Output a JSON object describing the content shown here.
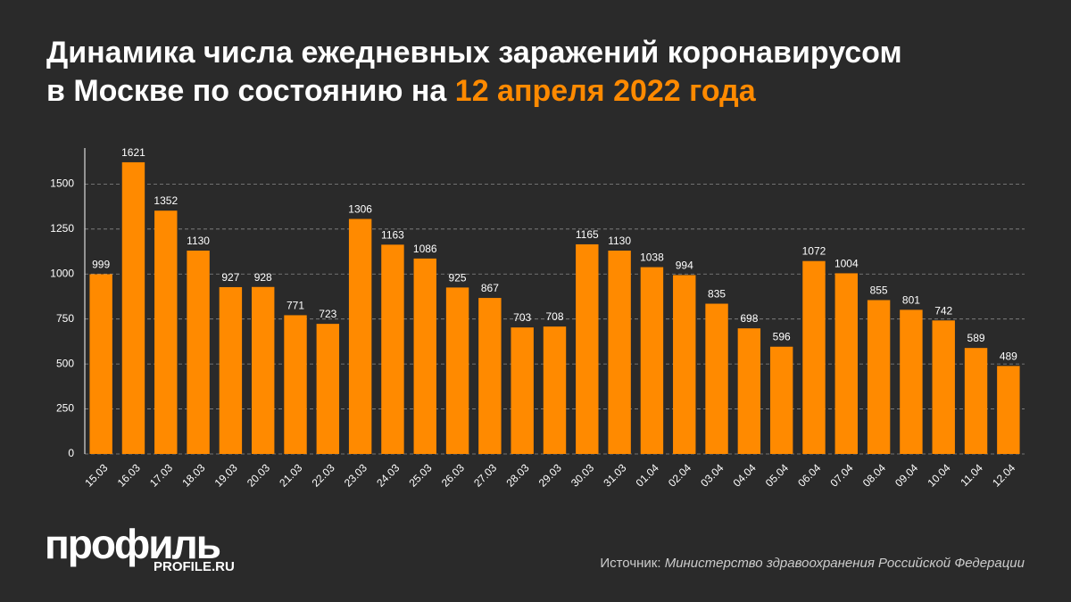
{
  "chart_data": {
    "type": "bar",
    "title": {
      "line1": "Динамика числа ежедневных заражений коронавирусом",
      "line2": "в Москве по состоянию на",
      "highlight": "12 апреля 2022 года"
    },
    "categories": [
      "15.03",
      "16.03",
      "17.03",
      "18.03",
      "19.03",
      "20.03",
      "21.03",
      "22.03",
      "23.03",
      "24.03",
      "25.03",
      "26.03",
      "27.03",
      "28.03",
      "29.03",
      "30.03",
      "31.03",
      "01.04",
      "02.04",
      "03.04",
      "04.04",
      "05.04",
      "06.04",
      "07.04",
      "08.04",
      "09.04",
      "10.04",
      "11.04",
      "12.04"
    ],
    "values": [
      999,
      1621,
      1352,
      1130,
      927,
      928,
      771,
      723,
      1306,
      1163,
      1086,
      925,
      867,
      703,
      708,
      1165,
      1130,
      1038,
      994,
      835,
      698,
      596,
      1072,
      1004,
      855,
      801,
      742,
      589,
      489
    ],
    "color": "#ff8a00",
    "highlight_color": "#ff8a00",
    "ylim": [
      0,
      1700
    ],
    "yticks": [
      0,
      250,
      500,
      750,
      1000,
      1250,
      1500
    ],
    "grid": true,
    "source_label": "Источник:",
    "source": "Министерство здравоохранения Российской Федерации"
  },
  "logo": {
    "name": "профиль",
    "site": "PROFILE.RU"
  }
}
